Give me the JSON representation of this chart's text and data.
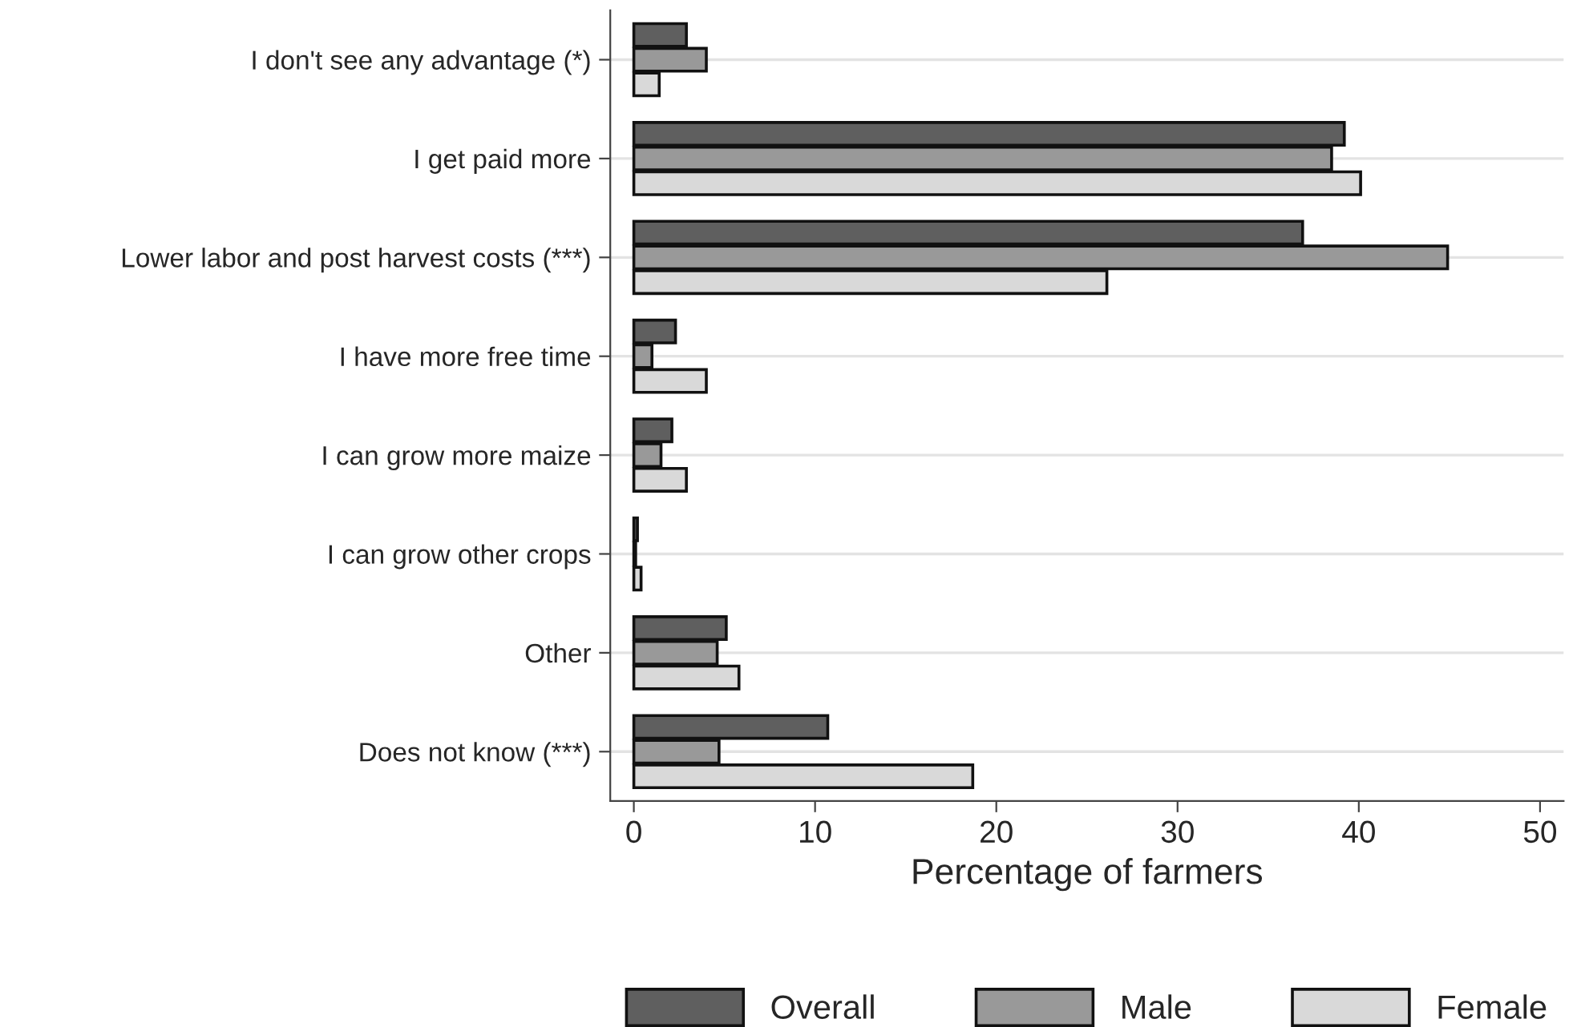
{
  "chart_data": {
    "type": "bar",
    "orientation": "horizontal",
    "xlabel": "Percentage of farmers",
    "categories": [
      "I don't see any advantage (*)",
      "I get paid more",
      "Lower labor and post harvest costs (***)",
      "I have more free time",
      "I can grow more maize",
      "I can grow other crops",
      "Other",
      "Does not know (***)"
    ],
    "series": [
      {
        "name": "Overall",
        "color": "#5f5f5f",
        "values": [
          2.9,
          39.2,
          36.9,
          2.3,
          2.1,
          0.2,
          5.1,
          10.7
        ]
      },
      {
        "name": "Male",
        "color": "#999999",
        "values": [
          4.0,
          38.5,
          44.9,
          1.0,
          1.5,
          0.1,
          4.6,
          4.7
        ]
      },
      {
        "name": "Female",
        "color": "#d9d9d9",
        "values": [
          1.4,
          40.1,
          26.1,
          4.0,
          2.9,
          0.4,
          5.8,
          18.7
        ]
      }
    ],
    "xlim": [
      -1.3,
      51.3
    ],
    "xticks": [
      0,
      10,
      20,
      30,
      40,
      50
    ],
    "grid": "y",
    "legend": "bottom"
  }
}
